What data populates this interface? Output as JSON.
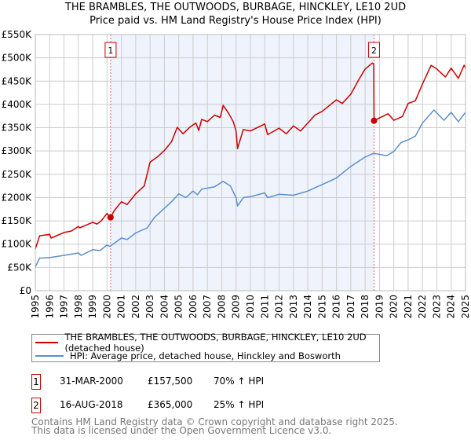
{
  "title_line1": "THE BRAMBLES, THE OUTWOODS, BURBAGE, HINCKLEY, LE10 2UD",
  "title_line2": "Price paid vs. HM Land Registry's House Price Index (HPI)",
  "colors": {
    "property": "#cc0000",
    "hpi": "#5b8fd0",
    "shade": "#eef3fc",
    "grid": "#cccccc"
  },
  "legend": {
    "property": "THE BRAMBLES, THE OUTWOODS, BURBAGE, HINCKLEY, LE10 2UD (detached house)",
    "hpi": "HPI: Average price, detached house, Hinckley and Bosworth"
  },
  "transactions": [
    {
      "num": "1",
      "date": "31-MAR-2000",
      "price": "£157,500",
      "hpi": "70% ↑ HPI"
    },
    {
      "num": "2",
      "date": "16-AUG-2018",
      "price": "£365,000",
      "hpi": "25% ↑ HPI"
    }
  ],
  "footer_line1": "Contains HM Land Registry data © Crown copyright and database right 2025.",
  "footer_line2": "This data is licensed under the Open Government Licence v3.0.",
  "chart_data": {
    "type": "line",
    "xlim": [
      1995,
      2025
    ],
    "ylim": [
      0,
      550000
    ],
    "grid": true,
    "y_ticks": [
      0,
      50000,
      100000,
      150000,
      200000,
      250000,
      300000,
      350000,
      400000,
      450000,
      500000,
      550000
    ],
    "y_tick_labels": [
      "£0",
      "£50K",
      "£100K",
      "£150K",
      "£200K",
      "£250K",
      "£300K",
      "£350K",
      "£400K",
      "£450K",
      "£500K",
      "£550K"
    ],
    "x_ticks": [
      "1995",
      "1996",
      "1997",
      "1998",
      "1999",
      "2000",
      "2001",
      "2002",
      "2003",
      "2004",
      "2005",
      "2006",
      "2007",
      "2008",
      "2009",
      "2010",
      "2011",
      "2012",
      "2013",
      "2014",
      "2015",
      "2016",
      "2017",
      "2018",
      "2019",
      "2020",
      "2021",
      "2022",
      "2023",
      "2024",
      "2025"
    ],
    "shaded_range": [
      2000.25,
      2018.62
    ],
    "sales": [
      {
        "label": "1",
        "x": 2000.25,
        "y": 157500
      },
      {
        "label": "2",
        "x": 2018.62,
        "y": 365000
      }
    ],
    "series": [
      {
        "name": "property",
        "points": [
          [
            1995,
            90000
          ],
          [
            1995.3,
            118000
          ],
          [
            1996,
            121000
          ],
          [
            1996.1,
            113000
          ],
          [
            1997,
            125000
          ],
          [
            1997.5,
            128000
          ],
          [
            1998,
            138000
          ],
          [
            1998.1,
            135000
          ],
          [
            1999,
            147000
          ],
          [
            1999.3,
            143000
          ],
          [
            1999.6,
            150000
          ],
          [
            2000,
            166000
          ],
          [
            2000.25,
            157500
          ],
          [
            2000.5,
            172000
          ],
          [
            2001,
            191000
          ],
          [
            2001.4,
            185000
          ],
          [
            2002,
            208000
          ],
          [
            2002.6,
            225000
          ],
          [
            2003,
            276000
          ],
          [
            2003.5,
            287000
          ],
          [
            2004,
            301000
          ],
          [
            2004.5,
            320000
          ],
          [
            2004.9,
            351000
          ],
          [
            2005.3,
            337000
          ],
          [
            2005.8,
            352000
          ],
          [
            2006.2,
            360000
          ],
          [
            2006.4,
            344000
          ],
          [
            2006.6,
            368000
          ],
          [
            2007,
            363000
          ],
          [
            2007.5,
            377000
          ],
          [
            2007.9,
            372000
          ],
          [
            2008.1,
            398000
          ],
          [
            2008.5,
            380000
          ],
          [
            2008.8,
            363000
          ],
          [
            2009,
            343000
          ],
          [
            2009.1,
            305000
          ],
          [
            2009.5,
            346000
          ],
          [
            2010,
            343000
          ],
          [
            2011,
            358000
          ],
          [
            2011.2,
            335000
          ],
          [
            2012,
            349000
          ],
          [
            2012.5,
            337000
          ],
          [
            2013,
            354000
          ],
          [
            2013.5,
            343000
          ],
          [
            2014,
            360000
          ],
          [
            2014.5,
            377000
          ],
          [
            2015,
            385000
          ],
          [
            2016,
            410000
          ],
          [
            2016.4,
            402000
          ],
          [
            2017,
            422000
          ],
          [
            2017.5,
            450000
          ],
          [
            2018,
            476000
          ],
          [
            2018.5,
            489000
          ],
          [
            2018.6,
            486000
          ],
          [
            2018.62,
            365000
          ],
          [
            2019,
            371000
          ],
          [
            2019.6,
            380000
          ],
          [
            2020,
            366000
          ],
          [
            2020.6,
            374000
          ],
          [
            2021,
            402000
          ],
          [
            2021.5,
            408000
          ],
          [
            2022,
            444000
          ],
          [
            2022.6,
            484000
          ],
          [
            2023,
            476000
          ],
          [
            2023.6,
            459000
          ],
          [
            2024,
            478000
          ],
          [
            2024.5,
            456000
          ],
          [
            2024.9,
            484000
          ],
          [
            2025,
            478000
          ]
        ]
      },
      {
        "name": "hpi",
        "points": [
          [
            1995,
            51000
          ],
          [
            1995.3,
            70000
          ],
          [
            1996,
            71000
          ],
          [
            1997,
            76000
          ],
          [
            1998,
            81000
          ],
          [
            1998.2,
            76000
          ],
          [
            1999,
            88000
          ],
          [
            1999.5,
            86000
          ],
          [
            2000,
            98000
          ],
          [
            2000.2,
            95000
          ],
          [
            2001,
            113000
          ],
          [
            2001.4,
            110000
          ],
          [
            2002,
            124000
          ],
          [
            2002.8,
            135000
          ],
          [
            2003.3,
            157000
          ],
          [
            2004,
            177000
          ],
          [
            2004.5,
            191000
          ],
          [
            2005,
            208000
          ],
          [
            2005.5,
            200000
          ],
          [
            2006,
            214000
          ],
          [
            2006.3,
            206000
          ],
          [
            2006.6,
            218000
          ],
          [
            2007.5,
            223000
          ],
          [
            2008.1,
            235000
          ],
          [
            2008.6,
            225000
          ],
          [
            2009,
            200000
          ],
          [
            2009.1,
            182000
          ],
          [
            2009.5,
            200000
          ],
          [
            2010,
            202000
          ],
          [
            2011,
            210000
          ],
          [
            2011.2,
            200000
          ],
          [
            2012,
            207000
          ],
          [
            2013,
            205000
          ],
          [
            2014,
            214000
          ],
          [
            2015,
            228000
          ],
          [
            2016,
            242000
          ],
          [
            2017,
            267000
          ],
          [
            2018,
            287000
          ],
          [
            2018.6,
            295000
          ],
          [
            2019.5,
            290000
          ],
          [
            2020,
            299000
          ],
          [
            2020.5,
            318000
          ],
          [
            2021,
            324000
          ],
          [
            2021.5,
            332000
          ],
          [
            2022,
            360000
          ],
          [
            2022.8,
            388000
          ],
          [
            2023.5,
            366000
          ],
          [
            2024,
            383000
          ],
          [
            2024.5,
            363000
          ],
          [
            2025,
            383000
          ]
        ]
      }
    ]
  }
}
